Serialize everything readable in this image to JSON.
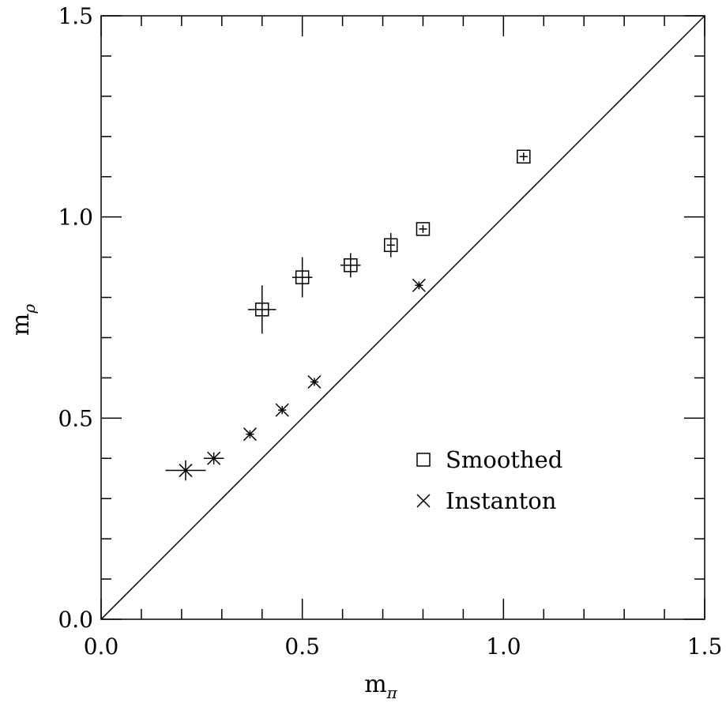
{
  "chart_data": {
    "type": "scatter",
    "title": "",
    "xlabel": "m",
    "xlabel_subscript": "π",
    "ylabel": "m",
    "ylabel_subscript": "ρ",
    "xlim": [
      0.0,
      1.5
    ],
    "ylim": [
      0.0,
      1.5
    ],
    "x_ticks": [
      "0.0",
      "0.5",
      "1.0",
      "1.5"
    ],
    "y_ticks": [
      "0.0",
      "0.5",
      "1.0",
      "1.5"
    ],
    "grid": false,
    "legend_position": "lower-right",
    "reference_line": {
      "name": "",
      "from": [
        0,
        0
      ],
      "to": [
        1.5,
        1.5
      ]
    },
    "series": [
      {
        "name": "Smoothed",
        "marker": "square",
        "points": [
          {
            "x": 0.4,
            "y": 0.77,
            "xerr": 0.035,
            "yerr": 0.06
          },
          {
            "x": 0.5,
            "y": 0.85,
            "xerr": 0.025,
            "yerr": 0.05
          },
          {
            "x": 0.62,
            "y": 0.88,
            "xerr": 0.025,
            "yerr": 0.03
          },
          {
            "x": 0.72,
            "y": 0.93,
            "xerr": 0.01,
            "yerr": 0.03
          },
          {
            "x": 0.8,
            "y": 0.97,
            "xerr": 0.01,
            "yerr": 0.01
          },
          {
            "x": 1.05,
            "y": 1.15,
            "xerr": 0.01,
            "yerr": 0.01
          }
        ]
      },
      {
        "name": "Instanton",
        "marker": "x",
        "points": [
          {
            "x": 0.21,
            "y": 0.37,
            "xerr": 0.05,
            "yerr": 0.025
          },
          {
            "x": 0.28,
            "y": 0.4,
            "xerr": 0.025,
            "yerr": 0.015
          },
          {
            "x": 0.37,
            "y": 0.46,
            "xerr": 0.01,
            "yerr": 0.01
          },
          {
            "x": 0.45,
            "y": 0.52,
            "xerr": 0.01,
            "yerr": 0.01
          },
          {
            "x": 0.53,
            "y": 0.59,
            "xerr": 0.01,
            "yerr": 0.01
          },
          {
            "x": 0.79,
            "y": 0.83,
            "xerr": 0.01,
            "yerr": 0.01
          }
        ]
      }
    ]
  }
}
